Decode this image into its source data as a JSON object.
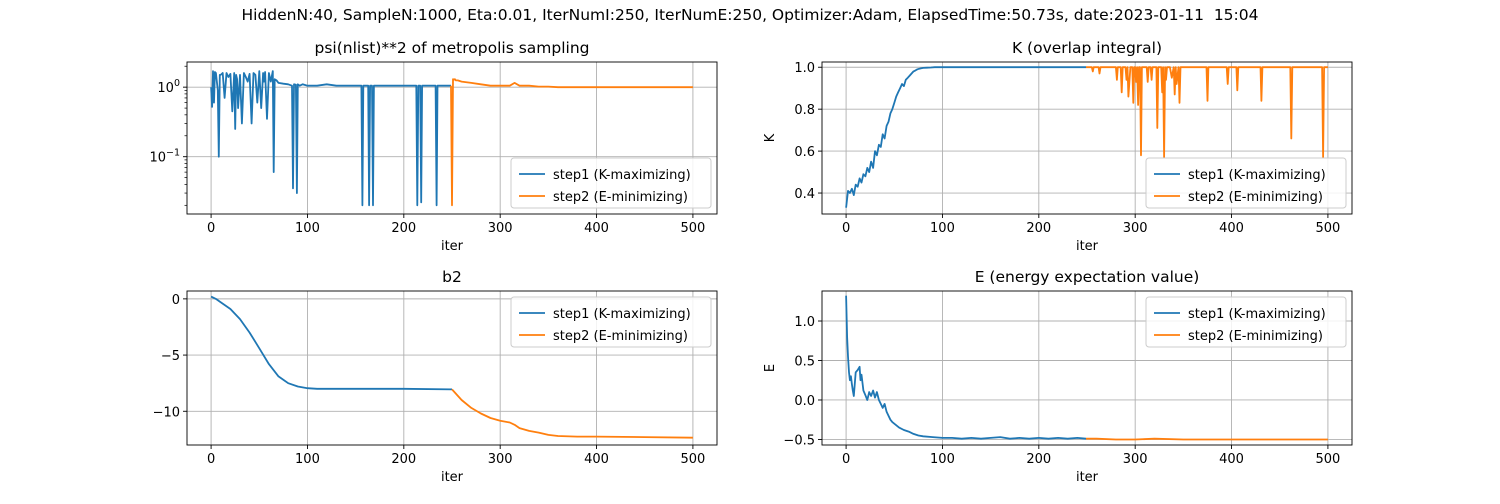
{
  "figure": {
    "suptitle": "HiddenN:40, SampleN:1000, Eta:0.01, IterNumI:250, IterNumE:250, Optimizer:Adam, ElapsedTime:50.73s, date:2023-01-11  15:04"
  },
  "colors": {
    "step1": "#1f77b4",
    "step2": "#ff7f0e",
    "grid": "#b0b0b0"
  },
  "chart_data": [
    {
      "id": "psi",
      "type": "line",
      "title": "psi(nlist)**2 of metropolis sampling",
      "xlabel": "iter",
      "ylabel": "",
      "yscale": "log",
      "xlim": [
        -25,
        525
      ],
      "ylim": [
        0.015,
        2.3
      ],
      "xticks": [
        0,
        100,
        200,
        300,
        400,
        500
      ],
      "yticks": [
        {
          "v": 1,
          "label": "10",
          "exp": "0"
        },
        {
          "v": 0.1,
          "label": "10",
          "exp": "−1"
        }
      ],
      "yminor": [
        0.02,
        0.03,
        0.04,
        0.05,
        0.06,
        0.07,
        0.08,
        0.09,
        0.2,
        0.3,
        0.4,
        0.5,
        0.6,
        0.7,
        0.8,
        0.9,
        2
      ],
      "grid": true,
      "legend_loc": "lower-right",
      "series": [
        {
          "name": "step1 (K-maximizing)",
          "color": "#1f77b4",
          "x": [
            0,
            1,
            2,
            3,
            4,
            5,
            7,
            8,
            9,
            10,
            12,
            14,
            16,
            18,
            20,
            22,
            24,
            25,
            26,
            27,
            28,
            30,
            32,
            34,
            36,
            38,
            40,
            42,
            44,
            46,
            48,
            50,
            52,
            54,
            55,
            56,
            58,
            60,
            62,
            64,
            65,
            66,
            68,
            70,
            75,
            80,
            84,
            85,
            86,
            88,
            89,
            90,
            92,
            95,
            100,
            110,
            120,
            130,
            140,
            150,
            155,
            156,
            157,
            158,
            160,
            163,
            164,
            165,
            167,
            168,
            169,
            170,
            172,
            180,
            190,
            200,
            210,
            213,
            214,
            215,
            217,
            218,
            219,
            220,
            222,
            225,
            230,
            233,
            234,
            235,
            237,
            240,
            245,
            249
          ],
          "y": [
            1.0,
            0.52,
            1.7,
            0.6,
            1.65,
            1.6,
            0.9,
            0.1,
            1.5,
            1.5,
            1.6,
            0.7,
            1.6,
            1.4,
            1.55,
            0.45,
            1.6,
            0.25,
            1.5,
            1.3,
            0.5,
            1.5,
            0.3,
            1.6,
            1.4,
            1.2,
            1.55,
            0.3,
            1.6,
            1.5,
            0.6,
            1.7,
            0.5,
            1.6,
            1.2,
            1.65,
            0.35,
            1.6,
            1.2,
            1.7,
            0.06,
            1.3,
            1.25,
            1.15,
            1.12,
            1.1,
            1.05,
            0.035,
            1.1,
            1.08,
            0.03,
            1.1,
            1.05,
            1.1,
            1.05,
            1.05,
            1.1,
            1.05,
            1.05,
            1.05,
            1.05,
            1.05,
            0.02,
            1.05,
            1.05,
            1.05,
            0.02,
            1.05,
            1.05,
            0.02,
            1.05,
            1.05,
            1.05,
            1.05,
            1.05,
            1.05,
            1.05,
            1.05,
            0.02,
            1.05,
            1.05,
            0.022,
            1.05,
            1.05,
            1.05,
            1.05,
            1.05,
            1.05,
            0.02,
            1.05,
            1.05,
            1.05,
            1.05,
            1.05
          ]
        },
        {
          "name": "step2 (E-minimizing)",
          "color": "#ff7f0e",
          "x": [
            249,
            250,
            251,
            252,
            253,
            254,
            256,
            260,
            270,
            280,
            290,
            300,
            310,
            315,
            320,
            330,
            340,
            350,
            360,
            380,
            400,
            420,
            440,
            460,
            480,
            500
          ],
          "y": [
            1.05,
            0.02,
            1.3,
            1.28,
            1.3,
            1.25,
            1.25,
            1.2,
            1.15,
            1.1,
            1.05,
            1.05,
            1.05,
            1.15,
            1.05,
            1.05,
            1.02,
            1.02,
            1.0,
            1.0,
            1.0,
            1.0,
            1.0,
            1.0,
            1.0,
            1.0
          ]
        }
      ]
    },
    {
      "id": "k",
      "type": "line",
      "title": "K (overlap integral)",
      "xlabel": "iter",
      "ylabel": "K",
      "yscale": "linear",
      "xlim": [
        -25,
        525
      ],
      "ylim": [
        0.3,
        1.025
      ],
      "xticks": [
        0,
        100,
        200,
        300,
        400,
        500
      ],
      "yticks": [
        {
          "v": 0.4,
          "label": "0.4"
        },
        {
          "v": 0.6,
          "label": "0.6"
        },
        {
          "v": 0.8,
          "label": "0.8"
        },
        {
          "v": 1.0,
          "label": "1.0"
        }
      ],
      "grid": true,
      "legend_loc": "lower-right",
      "series": [
        {
          "name": "step1 (K-maximizing)",
          "color": "#1f77b4",
          "x": [
            0,
            2,
            4,
            6,
            8,
            10,
            12,
            14,
            16,
            18,
            20,
            22,
            24,
            26,
            28,
            30,
            32,
            34,
            36,
            38,
            40,
            42,
            44,
            46,
            48,
            50,
            52,
            54,
            56,
            58,
            60,
            62,
            64,
            66,
            68,
            70,
            72,
            74,
            76,
            78,
            80,
            84,
            88,
            92,
            96,
            100,
            110,
            120,
            150,
            200,
            249
          ],
          "y": [
            0.33,
            0.41,
            0.4,
            0.42,
            0.39,
            0.44,
            0.43,
            0.47,
            0.45,
            0.49,
            0.48,
            0.52,
            0.5,
            0.55,
            0.52,
            0.6,
            0.58,
            0.63,
            0.62,
            0.68,
            0.66,
            0.72,
            0.74,
            0.78,
            0.8,
            0.83,
            0.86,
            0.88,
            0.9,
            0.92,
            0.91,
            0.94,
            0.95,
            0.96,
            0.97,
            0.98,
            0.985,
            0.99,
            0.993,
            0.995,
            0.997,
            0.998,
            0.999,
            1.0,
            1.0,
            1.0,
            1.0,
            1.0,
            1.0,
            1.0,
            1.0
          ]
        },
        {
          "name": "step2 (E-minimizing)",
          "color": "#ff7f0e",
          "x": [
            249,
            255,
            256,
            257,
            260,
            262,
            263,
            264,
            270,
            280,
            281,
            282,
            285,
            286,
            287,
            290,
            291,
            292,
            293,
            295,
            297,
            298,
            299,
            300,
            301,
            302,
            303,
            304,
            305,
            306,
            307,
            310,
            312,
            313,
            314,
            316,
            317,
            318,
            320,
            322,
            323,
            324,
            325,
            327,
            328,
            329,
            330,
            331,
            332,
            333,
            334,
            336,
            338,
            340,
            341,
            342,
            343,
            345,
            346,
            347,
            348,
            350,
            355,
            360,
            374,
            375,
            376,
            380,
            395,
            396,
            397,
            400,
            405,
            406,
            407,
            410,
            420,
            430,
            431,
            432,
            440,
            450,
            461,
            462,
            463,
            470,
            480,
            490,
            494,
            495,
            496,
            497,
            500
          ],
          "y": [
            1.0,
            1.0,
            0.98,
            1.0,
            1.0,
            1.0,
            0.97,
            1.0,
            1.0,
            1.0,
            0.94,
            1.0,
            1.0,
            0.88,
            1.0,
            1.0,
            0.94,
            1.0,
            0.86,
            1.0,
            1.0,
            0.83,
            1.0,
            1.0,
            0.93,
            1.0,
            0.82,
            1.0,
            1.0,
            0.58,
            1.0,
            1.0,
            1.0,
            0.93,
            1.0,
            1.0,
            0.94,
            1.0,
            1.0,
            1.0,
            0.71,
            1.0,
            1.0,
            1.0,
            0.88,
            1.0,
            0.57,
            1.0,
            0.94,
            1.0,
            1.0,
            1.0,
            0.95,
            1.0,
            0.87,
            1.0,
            0.92,
            1.0,
            0.83,
            1.0,
            1.0,
            1.0,
            1.0,
            1.0,
            1.0,
            0.84,
            1.0,
            1.0,
            1.0,
            0.92,
            1.0,
            1.0,
            1.0,
            0.89,
            1.0,
            1.0,
            1.0,
            1.0,
            0.84,
            1.0,
            1.0,
            1.0,
            1.0,
            0.66,
            1.0,
            1.0,
            1.0,
            1.0,
            1.0,
            0.57,
            1.0,
            1.0,
            1.0
          ]
        }
      ]
    },
    {
      "id": "b2",
      "type": "line",
      "title": "b2",
      "xlabel": "iter",
      "ylabel": "",
      "yscale": "linear",
      "xlim": [
        -25,
        525
      ],
      "ylim": [
        -13.0,
        0.7
      ],
      "xticks": [
        0,
        100,
        200,
        300,
        400,
        500
      ],
      "yticks": [
        {
          "v": 0,
          "label": "0"
        },
        {
          "v": -5,
          "label": "−5"
        },
        {
          "v": -10,
          "label": "−10"
        }
      ],
      "grid": true,
      "legend_loc": "upper-right",
      "series": [
        {
          "name": "step1 (K-maximizing)",
          "color": "#1f77b4",
          "x": [
            0,
            5,
            10,
            20,
            30,
            40,
            50,
            60,
            70,
            80,
            90,
            100,
            110,
            120,
            150,
            200,
            250
          ],
          "y": [
            0.2,
            0.0,
            -0.3,
            -0.9,
            -1.8,
            -3.0,
            -4.4,
            -5.8,
            -6.9,
            -7.5,
            -7.8,
            -7.95,
            -8.0,
            -8.0,
            -8.0,
            -8.0,
            -8.05
          ]
        },
        {
          "name": "step2 (E-minimizing)",
          "color": "#ff7f0e",
          "x": [
            250,
            260,
            270,
            280,
            290,
            300,
            310,
            315,
            320,
            330,
            340,
            350,
            360,
            380,
            400,
            450,
            500
          ],
          "y": [
            -8.05,
            -9.0,
            -9.7,
            -10.2,
            -10.6,
            -10.85,
            -11.0,
            -11.2,
            -11.5,
            -11.75,
            -11.9,
            -12.1,
            -12.2,
            -12.25,
            -12.25,
            -12.3,
            -12.35
          ]
        }
      ]
    },
    {
      "id": "e",
      "type": "line",
      "title": "E (energy expectation value)",
      "xlabel": "iter",
      "ylabel": "E",
      "yscale": "linear",
      "xlim": [
        -25,
        525
      ],
      "ylim": [
        -0.57,
        1.38
      ],
      "xticks": [
        0,
        100,
        200,
        300,
        400,
        500
      ],
      "yticks": [
        {
          "v": -0.5,
          "label": "−0.5"
        },
        {
          "v": 0,
          "label": "0.0"
        },
        {
          "v": 0.5,
          "label": "0.5"
        },
        {
          "v": 1.0,
          "label": "1.0"
        }
      ],
      "grid": true,
      "legend_loc": "upper-right",
      "series": [
        {
          "name": "step1 (K-maximizing)",
          "color": "#1f77b4",
          "x": [
            0,
            1,
            2,
            3,
            4,
            5,
            6,
            7,
            8,
            10,
            12,
            14,
            15,
            16,
            18,
            20,
            22,
            24,
            26,
            28,
            30,
            32,
            34,
            36,
            38,
            40,
            42,
            44,
            46,
            48,
            50,
            55,
            60,
            65,
            70,
            75,
            80,
            90,
            100,
            110,
            120,
            130,
            140,
            150,
            160,
            170,
            180,
            190,
            200,
            210,
            220,
            230,
            240,
            249
          ],
          "y": [
            1.32,
            0.8,
            0.55,
            0.35,
            0.25,
            0.3,
            0.2,
            0.12,
            0.05,
            0.35,
            0.38,
            0.42,
            0.25,
            0.32,
            0.12,
            0.06,
            0.0,
            0.1,
            0.05,
            0.12,
            0.03,
            0.1,
            0.0,
            -0.05,
            -0.1,
            -0.05,
            -0.15,
            -0.2,
            -0.25,
            -0.28,
            -0.3,
            -0.35,
            -0.38,
            -0.4,
            -0.43,
            -0.45,
            -0.46,
            -0.47,
            -0.48,
            -0.48,
            -0.49,
            -0.48,
            -0.49,
            -0.48,
            -0.47,
            -0.49,
            -0.48,
            -0.49,
            -0.48,
            -0.49,
            -0.48,
            -0.49,
            -0.48,
            -0.49
          ]
        },
        {
          "name": "step2 (E-minimizing)",
          "color": "#ff7f0e",
          "x": [
            249,
            260,
            280,
            300,
            320,
            350,
            400,
            450,
            500
          ],
          "y": [
            -0.49,
            -0.49,
            -0.5,
            -0.5,
            -0.49,
            -0.5,
            -0.5,
            -0.5,
            -0.5
          ]
        }
      ]
    }
  ]
}
